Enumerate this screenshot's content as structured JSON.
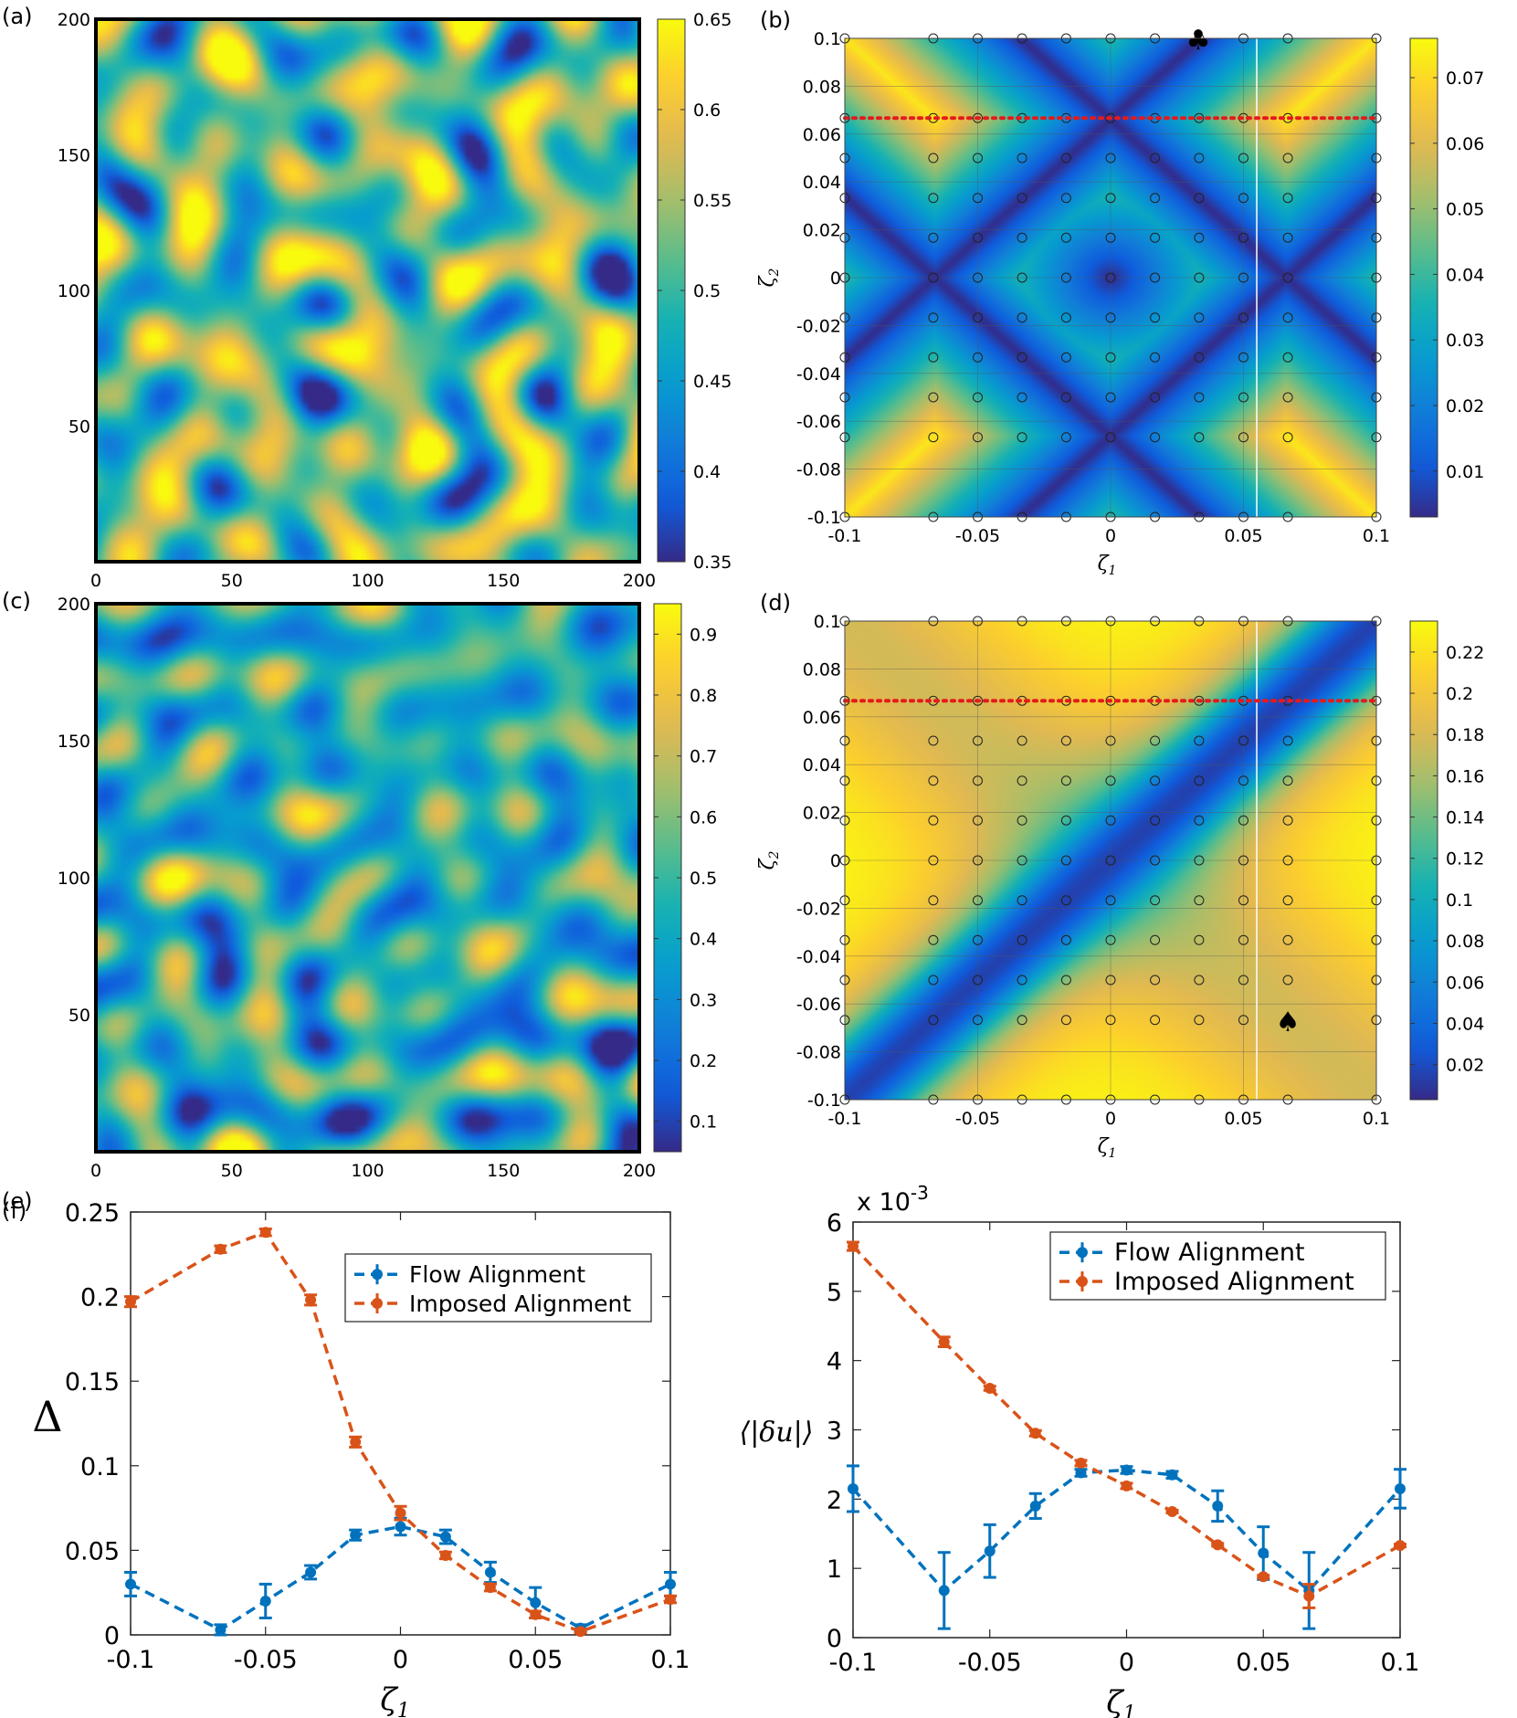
{
  "chart_data": [
    {
      "panel": "(a)",
      "type": "heatmap",
      "x_ticks": [
        "0",
        "50",
        "100",
        "150",
        "200"
      ],
      "y_ticks": [
        "50",
        "100",
        "150",
        "200"
      ],
      "xlim": [
        0,
        200
      ],
      "ylim": [
        0,
        200
      ],
      "colorbar": {
        "ticks": [
          "0.35",
          "0.4",
          "0.45",
          "0.5",
          "0.55",
          "0.6",
          "0.65"
        ],
        "range": [
          0.35,
          0.65
        ]
      },
      "field_seed": 1
    },
    {
      "panel": "(b)",
      "type": "heatmap",
      "xlabel": "ζ1",
      "ylabel": "ζ2",
      "x_ticks": [
        "-0.1",
        "-0.05",
        "0",
        "0.05",
        "0.1"
      ],
      "y_ticks": [
        "0.1",
        "0.08",
        "0.06",
        "0.04",
        "0.02",
        "0",
        "-0.02",
        "-0.04",
        "-0.06",
        "-0.08",
        "-0.1"
      ],
      "xlim": [
        -0.1,
        0.1
      ],
      "ylim": [
        -0.1,
        0.1
      ],
      "colorbar": {
        "ticks": [
          "0.01",
          "0.02",
          "0.03",
          "0.04",
          "0.05",
          "0.06",
          "0.07"
        ],
        "range": [
          0.003,
          0.076
        ]
      },
      "marker": {
        "symbol": "♣",
        "x": 0.033,
        "y": 0.1
      },
      "dotted_line_y": 0.0667
    },
    {
      "panel": "(c)",
      "type": "heatmap",
      "x_ticks": [
        "0",
        "50",
        "100",
        "150",
        "200"
      ],
      "y_ticks": [
        "50",
        "100",
        "150",
        "200"
      ],
      "xlim": [
        0,
        200
      ],
      "ylim": [
        0,
        200
      ],
      "colorbar": {
        "ticks": [
          "0.1",
          "0.2",
          "0.3",
          "0.4",
          "0.5",
          "0.6",
          "0.7",
          "0.8",
          "0.9"
        ],
        "range": [
          0.05,
          0.95
        ]
      },
      "field_seed": 2
    },
    {
      "panel": "(d)",
      "type": "heatmap",
      "xlabel": "ζ1",
      "ylabel": "ζ2",
      "x_ticks": [
        "-0.1",
        "-0.05",
        "0",
        "0.05",
        "0.1"
      ],
      "y_ticks": [
        "0.1",
        "0.08",
        "0.06",
        "0.04",
        "0.02",
        "0",
        "-0.02",
        "-0.04",
        "-0.06",
        "-0.08",
        "-0.1"
      ],
      "xlim": [
        -0.1,
        0.1
      ],
      "ylim": [
        -0.1,
        0.1
      ],
      "colorbar": {
        "ticks": [
          "0.02",
          "0.04",
          "0.06",
          "0.08",
          "0.1",
          "0.12",
          "0.14",
          "0.16",
          "0.18",
          "0.2",
          "0.22"
        ],
        "range": [
          0.003,
          0.235
        ]
      },
      "marker": {
        "symbol": "♠",
        "x": 0.0667,
        "y": -0.0667
      },
      "dotted_line_y": 0.0667
    },
    {
      "panel": "(e)",
      "type": "line",
      "xlabel": "ζ1",
      "ylabel": "Δ",
      "x_ticks": [
        "-0.1",
        "-0.05",
        "0",
        "0.05",
        "0.1"
      ],
      "y_ticks": [
        "0",
        "0.05",
        "0.1",
        "0.15",
        "0.2",
        "0.25"
      ],
      "xlim": [
        -0.1,
        0.1
      ],
      "ylim": [
        0,
        0.25
      ],
      "x": [
        -0.1,
        -0.0667,
        -0.05,
        -0.0333,
        -0.0167,
        0,
        0.0167,
        0.0333,
        0.05,
        0.0667,
        0.1
      ],
      "series": [
        {
          "name": "Flow Alignment",
          "color": "#0072BD",
          "values": [
            0.03,
            0.003,
            0.02,
            0.037,
            0.059,
            0.064,
            0.058,
            0.037,
            0.019,
            0.004,
            0.03
          ],
          "errors": [
            0.007,
            0.003,
            0.01,
            0.004,
            0.003,
            0.005,
            0.004,
            0.006,
            0.009,
            0.002,
            0.007
          ]
        },
        {
          "name": "Imposed Alignment",
          "color": "#D95319",
          "values": [
            0.197,
            0.228,
            0.238,
            0.198,
            0.114,
            0.072,
            0.047,
            0.028,
            0.012,
            0.002,
            0.021
          ],
          "errors": [
            0.003,
            0.002,
            0.002,
            0.003,
            0.003,
            0.004,
            0.002,
            0.002,
            0.002,
            0.001,
            0.002
          ]
        }
      ]
    },
    {
      "panel": "(f)",
      "type": "line",
      "xlabel": "ζ1",
      "ylabel": "⟨|δu|⟩",
      "exponent_label": "x 10",
      "exponent_power": "-3",
      "x_ticks": [
        "-0.1",
        "-0.05",
        "0",
        "0.05",
        "0.1"
      ],
      "y_ticks": [
        "0",
        "1",
        "2",
        "3",
        "4",
        "5",
        "6"
      ],
      "xlim": [
        -0.1,
        0.1
      ],
      "ylim": [
        0,
        6
      ],
      "x": [
        -0.1,
        -0.0667,
        -0.05,
        -0.0333,
        -0.0167,
        0,
        0.0167,
        0.0333,
        0.05,
        0.0667,
        0.1
      ],
      "series": [
        {
          "name": "Flow Alignment",
          "color": "#0072BD",
          "values": [
            2.15,
            0.68,
            1.25,
            1.9,
            2.38,
            2.42,
            2.35,
            1.9,
            1.22,
            0.68,
            2.15
          ],
          "errors": [
            0.33,
            0.55,
            0.38,
            0.18,
            0.05,
            0.05,
            0.05,
            0.22,
            0.38,
            0.55,
            0.28
          ]
        },
        {
          "name": "Imposed Alignment",
          "color": "#D95319",
          "values": [
            5.65,
            4.27,
            3.6,
            2.95,
            2.52,
            2.19,
            1.82,
            1.34,
            0.88,
            0.6,
            1.33
          ],
          "errors": [
            0.06,
            0.07,
            0.03,
            0.04,
            0.04,
            0.04,
            0.02,
            0.02,
            0.02,
            0.17,
            0.02
          ]
        }
      ]
    }
  ]
}
